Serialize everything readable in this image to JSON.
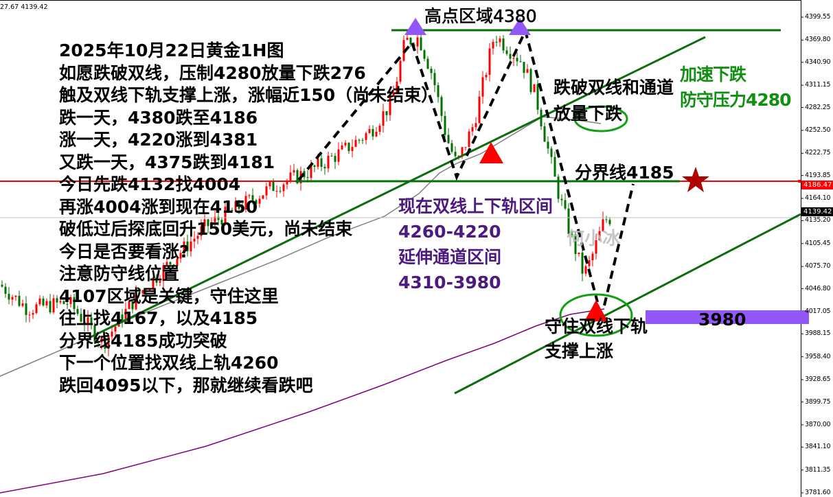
{
  "header": {
    "ohlc_info": "27.67 4139.42"
  },
  "chart_data": {
    "type": "candlestick",
    "timeframe": "1H",
    "instrument": "黄金",
    "y_ticks": [
      "4399.55",
      "4369.80",
      "4340.90",
      "4311.15",
      "4282.25",
      "4252.50",
      "4222.75",
      "4193.85",
      "4164.10",
      "4135.20",
      "4105.45",
      "4075.70",
      "4046.80",
      "4017.05",
      "3988.15",
      "3958.40",
      "3928.65",
      "3899.75",
      "3870.00",
      "3841.10",
      "3811.35",
      "3781.60"
    ],
    "ylim": [
      3781.6,
      4399.55
    ],
    "approx_close_path": [
      4052,
      4021,
      4029,
      3976,
      4038,
      4083,
      4128,
      4154,
      4181,
      4199,
      4226,
      4252,
      4288,
      4368,
      4373,
      4324,
      4244,
      4208,
      4261,
      4377,
      4359,
      4342,
      4297,
      4181,
      4119,
      4092,
      4065,
      4083,
      4136,
      4139
    ],
    "current_price": "4139.42",
    "marked_price": "4186.47",
    "levels": {
      "high_zone": 4380,
      "divider": 4185,
      "support_zone": 3980
    },
    "colors": {
      "bull": "#ff0000",
      "bear": "#007000",
      "trendline": "#0a6e0a",
      "ma_fast": "#808080",
      "ma_slow": "#800080",
      "zone": "#9457f7",
      "marked_line": "#ff0000"
    }
  },
  "annotations": {
    "left_block": [
      "2025年10月22日黄金1H图",
      "如愿跌破双线，压制4280放量下跌276",
      "触及双线下轨支撑上涨，涨幅近150（尚未结束）",
      "跌一天，4380跌至4186",
      "涨一天，4220涨到4381",
      "又跌一天，4375跌到4181",
      "今日先跌4132找4004",
      "再涨4004涨到现在4150",
      "破低过后探底回升150美元，尚未结束",
      "今日是否要看涨?",
      "注意防守线位置",
      "4107区域是关键，守住这里",
      "往上找4167，以及4185",
      "分界线4185成功突破",
      "下一个位置找双线上轨4260",
      "跌回4095以下，那就继续看跌吧"
    ],
    "high_zone": "高点区域4380",
    "break_note": [
      "跌破双线和通道",
      "放量下跌"
    ],
    "accel_note": [
      "加速下跌",
      "防守压力4280"
    ],
    "divider_note": "分界线4185",
    "range_note": [
      "现在双线上下轨区间",
      "4260-4220",
      "延伸通道区间",
      "4310-3980"
    ],
    "support_note": [
      "守住双线下轨",
      "支撑上涨"
    ],
    "zone_label": "3980",
    "watermark": "何小冰"
  }
}
